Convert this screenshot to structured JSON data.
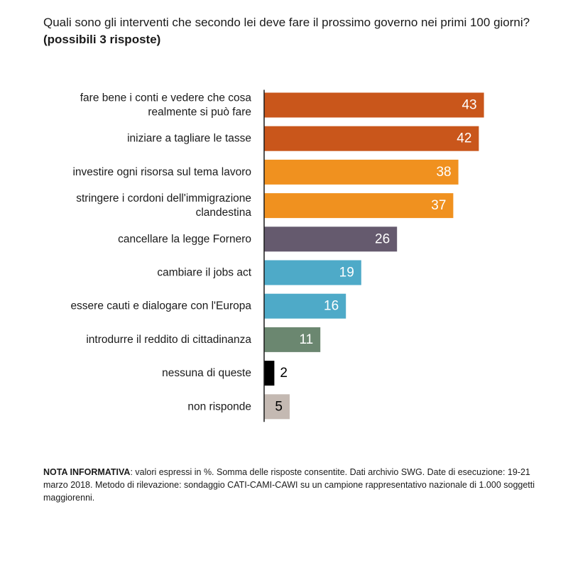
{
  "title": {
    "question": "Quali sono gli interventi che secondo lei deve fare il prossimo governo nei primi 100 giorni?",
    "qualifier": "(possibili 3 risposte)"
  },
  "chart_data": {
    "type": "bar",
    "orientation": "horizontal",
    "categories": [
      [
        "fare bene i conti e vedere che cosa",
        "realmente si può fare"
      ],
      [
        "iniziare a tagliare le tasse"
      ],
      [
        "investire ogni risorsa sul tema lavoro"
      ],
      [
        "stringere i cordoni dell'immigrazione",
        "clandestina"
      ],
      [
        "cancellare la legge Fornero"
      ],
      [
        "cambiare il jobs act"
      ],
      [
        "essere cauti e dialogare con l'Europa"
      ],
      [
        "introdurre il reddito di cittadinanza"
      ],
      [
        "nessuna di queste"
      ],
      [
        "non risponde"
      ]
    ],
    "values": [
      43,
      42,
      38,
      37,
      26,
      19,
      16,
      11,
      2,
      5
    ],
    "colors": [
      "#c9561b",
      "#c9561b",
      "#f0911f",
      "#f0911f",
      "#655a6e",
      "#4eaac8",
      "#4eaac8",
      "#6b8770",
      "#000000",
      "#c4b9b2"
    ],
    "value_label_inside": [
      true,
      true,
      true,
      true,
      true,
      true,
      true,
      true,
      false,
      true
    ],
    "value_label_color": [
      "#ffffff",
      "#ffffff",
      "#ffffff",
      "#ffffff",
      "#ffffff",
      "#ffffff",
      "#ffffff",
      "#ffffff",
      "#000000",
      "#000000"
    ],
    "unit": "%",
    "grid": false,
    "legend": "none"
  },
  "note": {
    "label": "NOTA INFORMATIVA",
    "text": ": valori espressi in %. Somma delle risposte consentite. Dati archivio SWG. Date di esecuzione: 19-21 marzo 2018. Metodo di rilevazione: sondaggio CATI-CAMI-CAWI su un campione rappresentativo nazionale di 1.000 soggetti maggiorenni."
  }
}
